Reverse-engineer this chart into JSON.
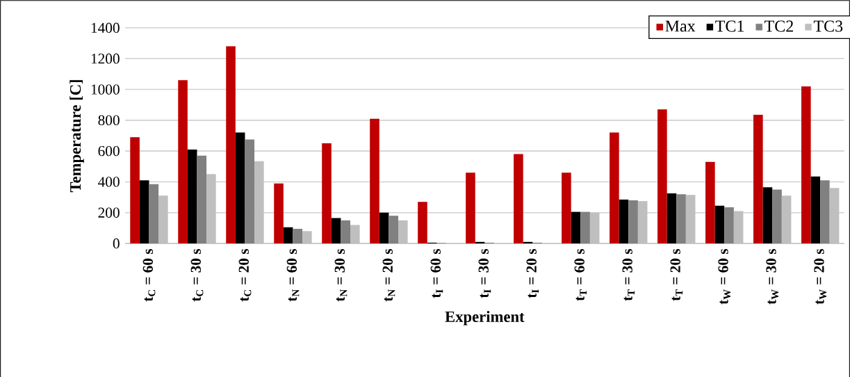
{
  "chart_data": {
    "type": "bar",
    "xlabel": "Experiment",
    "ylabel": "Temperature [C]",
    "categories": [
      "t$_{C}$ = 60 s",
      "t$_{C}$ = 30 s",
      "t$_{C}$ = 20 s",
      "t$_{N}$ = 60 s",
      "t$_{N}$ = 30 s",
      "t$_{N}$ = 20 s",
      "t$_{I}$ = 60 s",
      "t$_{I}$ = 30 s",
      "t$_{I}$ = 20 s",
      "t$_{T}$ = 60 s",
      "t$_{T}$ = 30 s",
      "t$_{T}$ = 20 s",
      "t$_{W}$ = 60 s",
      "t$_{W}$ = 30 s",
      "t$_{W}$ = 20 s"
    ],
    "series": [
      {
        "name": "Max",
        "color": "#c00000",
        "values": [
          690,
          1060,
          1280,
          390,
          650,
          810,
          270,
          460,
          580,
          460,
          720,
          870,
          530,
          835,
          1020
        ]
      },
      {
        "name": "TC1",
        "color": "#000000",
        "values": [
          410,
          610,
          720,
          105,
          165,
          200,
          5,
          10,
          10,
          205,
          285,
          325,
          245,
          365,
          435
        ]
      },
      {
        "name": "TC2",
        "color": "#808080",
        "values": [
          385,
          570,
          675,
          95,
          150,
          180,
          3,
          5,
          5,
          205,
          280,
          320,
          235,
          350,
          410
        ]
      },
      {
        "name": "TC3",
        "color": "#bfbfbf",
        "values": [
          310,
          450,
          535,
          80,
          120,
          150,
          0,
          0,
          0,
          200,
          275,
          315,
          210,
          310,
          360
        ]
      }
    ],
    "ylim": [
      0,
      1400
    ],
    "yticks": [
      0,
      200,
      400,
      600,
      800,
      1000,
      1200,
      1400
    ],
    "grid": "y",
    "legend": "top right"
  }
}
